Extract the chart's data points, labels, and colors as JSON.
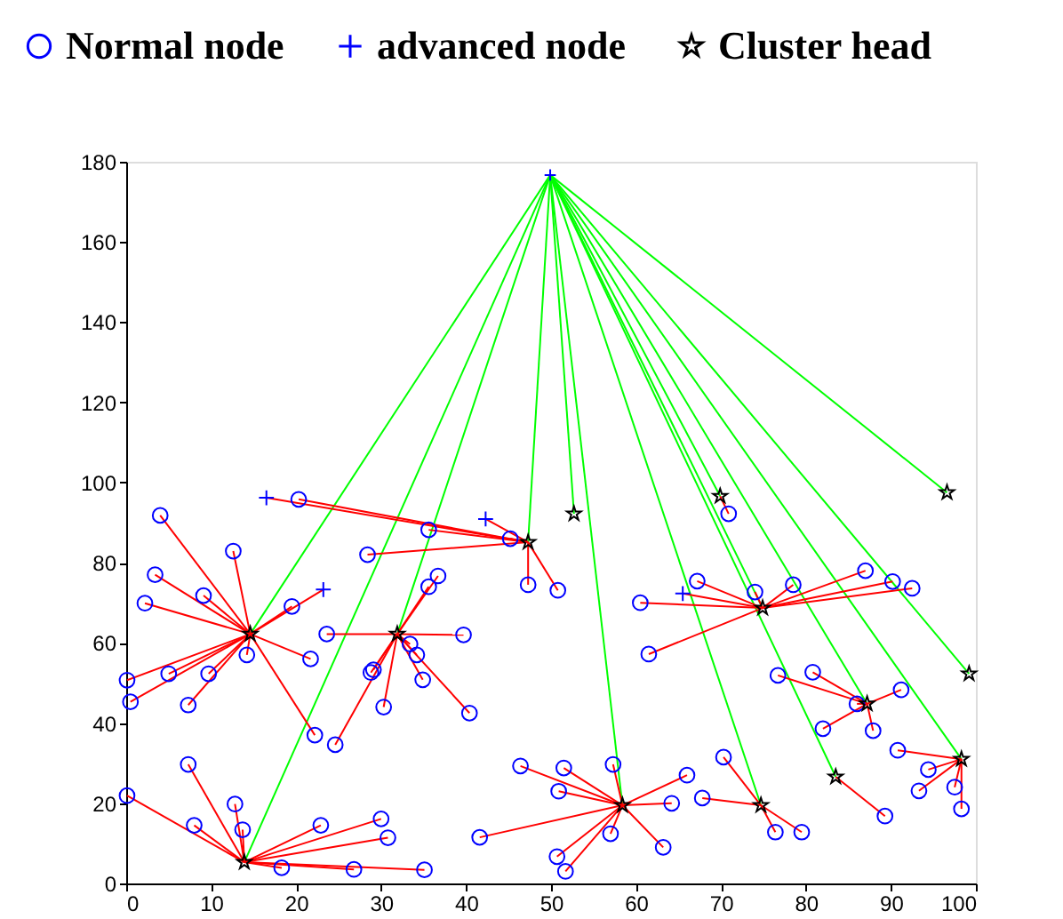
{
  "chart_data": {
    "type": "scatter",
    "xlim": [
      0,
      100
    ],
    "ylim": [
      0,
      180
    ],
    "xticks": [
      0,
      10,
      20,
      30,
      40,
      50,
      60,
      70,
      80,
      90,
      100
    ],
    "yticks": [
      0,
      20,
      40,
      60,
      80,
      100,
      120,
      140,
      160,
      180
    ],
    "legend": "top",
    "series": [
      {
        "type": "line",
        "color": "#00ff00",
        "x": [
          49.9,
          14.6,
          null,
          49.9,
          13.9,
          null,
          49.9,
          31.9,
          null,
          49.9,
          47.3,
          null,
          49.9,
          52.7,
          null,
          49.9,
          58.4,
          null,
          49.9,
          69.9,
          null,
          49.9,
          74.9,
          null,
          49.9,
          74.7,
          null,
          49.9,
          83.5,
          null,
          49.9,
          87.2,
          null,
          49.9,
          96.6,
          null,
          49.9,
          99.2,
          null,
          49.9,
          98.3
        ],
        "values": [
          176.7,
          62.2,
          null,
          176.7,
          5.3,
          null,
          176.7,
          62.2,
          null,
          176.7,
          85.1,
          null,
          176.7,
          92.2,
          null,
          176.7,
          19.5,
          null,
          176.7,
          96.6,
          null,
          176.7,
          68.7,
          null,
          176.7,
          19.5,
          null,
          176.7,
          26.6,
          null,
          176.7,
          44.8,
          null,
          176.7,
          97.5,
          null,
          176.7,
          52.3,
          null,
          176.7,
          31
        ]
      },
      {
        "type": "line",
        "color": "#ff0000",
        "x": [
          14.6,
          4,
          null,
          14.6,
          12.6,
          null,
          14.6,
          3.4,
          null,
          14.6,
          9.1,
          null,
          14.6,
          2.2,
          null,
          14.6,
          19.5,
          null,
          14.6,
          21.7,
          null,
          14.6,
          14.2,
          null,
          14.6,
          9.7,
          null,
          14.6,
          5,
          null,
          14.6,
          0.1,
          null,
          14.6,
          0.5,
          null,
          14.6,
          7.3,
          null,
          14.6,
          22.2,
          null,
          14.6,
          23.2,
          null,
          31.9,
          23.6,
          null,
          31.9,
          24.6,
          null,
          31.9,
          29.1,
          null,
          31.9,
          28.8,
          null,
          31.9,
          30.3,
          null,
          31.9,
          33.4,
          null,
          31.9,
          34.2,
          null,
          31.9,
          34.9,
          null,
          31.9,
          35.6,
          null,
          31.9,
          36.7,
          null,
          31.9,
          39.7,
          null,
          31.9,
          40.4,
          null,
          13.9,
          0.1,
          null,
          13.9,
          7.3,
          null,
          13.9,
          8,
          null,
          13.9,
          12.8,
          null,
          13.9,
          13.7,
          null,
          13.9,
          18.3,
          null,
          13.9,
          22.9,
          null,
          13.9,
          30,
          null,
          13.9,
          30.8,
          null,
          13.9,
          26.8,
          null,
          13.9,
          35.1,
          null,
          47.3,
          45.2,
          null,
          47.3,
          47.3,
          null,
          47.3,
          50.8,
          null,
          47.3,
          35.6,
          null,
          47.3,
          20.3,
          null,
          47.3,
          28.4,
          null,
          47.3,
          42.3,
          null,
          47.3,
          16.5,
          null,
          58.4,
          46.4,
          null,
          58.4,
          51.5,
          null,
          58.4,
          50.9,
          null,
          58.4,
          57.3,
          null,
          58.4,
          66,
          null,
          58.4,
          64.2,
          null,
          58.4,
          57,
          null,
          58.4,
          63.2,
          null,
          58.4,
          41.6,
          null,
          58.4,
          50.7,
          null,
          58.4,
          51.7,
          null,
          74.9,
          67.2,
          null,
          74.9,
          60.5,
          null,
          74.9,
          61.5,
          null,
          74.9,
          74,
          null,
          74.9,
          78.5,
          null,
          74.9,
          87,
          null,
          74.9,
          90.2,
          null,
          74.9,
          92.5,
          null,
          74.9,
          65.5,
          null,
          87.2,
          76.7,
          null,
          87.2,
          80.8,
          null,
          87.2,
          91.2,
          null,
          87.2,
          86,
          null,
          87.2,
          82,
          null,
          87.2,
          87.9,
          null,
          98.3,
          90.8,
          null,
          98.3,
          94.4,
          null,
          98.3,
          93.3,
          null,
          98.3,
          97.5,
          null,
          98.3,
          98.3,
          null,
          83.5,
          89.3,
          null,
          74.7,
          76.4,
          null,
          74.7,
          79.5,
          null,
          74.7,
          70.3,
          null,
          74.7,
          67.8,
          null,
          69.9,
          70.9
        ],
        "values": [
          62.2,
          91.8,
          null,
          62.2,
          82.9,
          null,
          62.2,
          77,
          null,
          62.2,
          71.8,
          null,
          62.2,
          69.9,
          null,
          62.2,
          69.1,
          null,
          62.2,
          56,
          null,
          62.2,
          57,
          null,
          62.2,
          52.3,
          null,
          62.2,
          52.3,
          null,
          62.2,
          50.7,
          null,
          62.2,
          45.3,
          null,
          62.2,
          44.5,
          null,
          62.2,
          37,
          null,
          62.2,
          73.3,
          null,
          62.2,
          62.2,
          null,
          62.2,
          34.6,
          null,
          62.2,
          53.3,
          null,
          62.2,
          52.6,
          null,
          62.2,
          44,
          null,
          62.2,
          59.7,
          null,
          62.2,
          57,
          null,
          62.2,
          50.8,
          null,
          62.2,
          74,
          null,
          62.2,
          76.7,
          null,
          62.2,
          62,
          null,
          62.2,
          42.5,
          null,
          5.3,
          21.9,
          null,
          5.3,
          29.7,
          null,
          5.3,
          14.5,
          null,
          5.3,
          19.8,
          null,
          5.3,
          13.4,
          null,
          5.3,
          3.9,
          null,
          5.3,
          14.5,
          null,
          5.3,
          16.1,
          null,
          5.3,
          11.4,
          null,
          5.3,
          3.5,
          null,
          5.3,
          3.4,
          null,
          85.1,
          86,
          null,
          85.1,
          74.5,
          null,
          85.1,
          73.1,
          null,
          85.1,
          88.2,
          null,
          85.1,
          95.8,
          null,
          85.1,
          82,
          null,
          85.1,
          90.9,
          null,
          85.1,
          96.2,
          null,
          19.5,
          29.3,
          null,
          19.5,
          28.8,
          null,
          19.5,
          23,
          null,
          19.5,
          29.7,
          null,
          19.5,
          27,
          null,
          19.5,
          20,
          null,
          19.5,
          12.4,
          null,
          19.5,
          9,
          null,
          19.5,
          11.5,
          null,
          19.5,
          6.7,
          null,
          19.5,
          3,
          null,
          68.7,
          75.4,
          null,
          68.7,
          70,
          null,
          68.7,
          57.2,
          null,
          68.7,
          72.7,
          null,
          68.7,
          74.5,
          null,
          68.7,
          78,
          null,
          68.7,
          75.3,
          null,
          68.7,
          73.6,
          null,
          68.7,
          72.3,
          null,
          44.8,
          51.9,
          null,
          44.8,
          52.7,
          null,
          44.8,
          48.3,
          null,
          44.8,
          44.8,
          null,
          44.8,
          38.6,
          null,
          44.8,
          38.1,
          null,
          31,
          33.2,
          null,
          31,
          28.4,
          null,
          31,
          23.1,
          null,
          31,
          24,
          null,
          31,
          18.6,
          null,
          26.6,
          16.8,
          null,
          19.5,
          12.8,
          null,
          19.5,
          12.8,
          null,
          19.5,
          31.5,
          null,
          19.5,
          21.3,
          null,
          96.6,
          92.2
        ]
      },
      {
        "name": "Normal node",
        "color": "#0000ff",
        "marker": "circle",
        "x": [
          4,
          12.6,
          3.4,
          9.1,
          2.2,
          19.5,
          21.7,
          14.2,
          9.7,
          5,
          0.1,
          0.5,
          7.3,
          22.2,
          23.6,
          24.6,
          29.1,
          28.8,
          30.3,
          33.4,
          34.2,
          34.9,
          35.6,
          36.7,
          39.7,
          40.4,
          0.1,
          7.3,
          8,
          12.8,
          13.7,
          18.3,
          22.9,
          30,
          30.8,
          26.8,
          35.1,
          45.2,
          47.3,
          50.8,
          35.6,
          20.3,
          28.4,
          46.4,
          51.5,
          50.9,
          57.3,
          66,
          64.2,
          57,
          63.2,
          41.6,
          50.7,
          51.7,
          67.2,
          60.5,
          61.5,
          74,
          78.5,
          87,
          90.2,
          92.5,
          76.7,
          80.8,
          91.2,
          86,
          82,
          87.9,
          90.8,
          94.4,
          93.3,
          97.5,
          98.3,
          89.3,
          76.4,
          79.5,
          70.3,
          67.8,
          70.9
        ],
        "values": [
          91.8,
          82.9,
          77,
          71.8,
          69.9,
          69.1,
          56,
          57,
          52.3,
          52.3,
          50.7,
          45.3,
          44.5,
          37,
          62.2,
          34.6,
          53.3,
          52.6,
          44,
          59.7,
          57,
          50.8,
          74,
          76.7,
          62,
          42.5,
          21.9,
          29.7,
          14.5,
          19.8,
          13.4,
          3.9,
          14.5,
          16.1,
          11.4,
          3.5,
          3.4,
          86,
          74.5,
          73.1,
          88.2,
          95.8,
          82,
          29.3,
          28.8,
          23,
          29.7,
          27,
          20,
          12.4,
          9,
          11.5,
          6.7,
          3,
          75.4,
          70,
          57.2,
          72.7,
          74.5,
          78,
          75.3,
          73.6,
          51.9,
          52.7,
          48.3,
          44.8,
          38.6,
          38.1,
          33.2,
          28.4,
          23.1,
          24,
          18.6,
          16.8,
          12.8,
          12.8,
          31.5,
          21.3,
          92.2
        ]
      },
      {
        "name": "advanced node",
        "color": "#0000ff",
        "marker": "cross",
        "x": [
          23.2,
          42.3,
          16.5,
          65.5
        ],
        "values": [
          73.3,
          90.9,
          96.2,
          72.3
        ]
      },
      {
        "name": "Cluster head",
        "color": "#000000",
        "marker": "star",
        "x": [
          14.6,
          13.9,
          31.9,
          47.3,
          52.7,
          58.4,
          69.9,
          74.9,
          74.7,
          83.5,
          87.2,
          96.6,
          99.2,
          98.3
        ],
        "values": [
          62.2,
          5.3,
          62.2,
          85.1,
          92.2,
          19.5,
          96.6,
          68.7,
          19.5,
          26.6,
          44.8,
          97.5,
          52.3,
          31
        ]
      },
      {
        "color": "#0000ff",
        "marker": "cross",
        "x": [
          49.9
        ],
        "values": [
          176.7
        ]
      }
    ]
  }
}
